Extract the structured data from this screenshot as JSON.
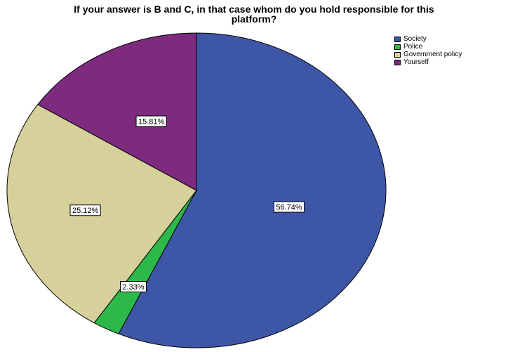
{
  "chart_data": {
    "type": "pie",
    "title": "If your answer is B and C, in that case whom do you hold responsible for this platform?",
    "title_lines": [
      "If your answer is B and C, in that case whom do you hold responsible for this",
      "platform?"
    ],
    "categories": [
      "Society",
      "Police",
      "Government policy",
      "Yourself"
    ],
    "values": [
      56.74,
      2.33,
      25.12,
      15.81
    ],
    "data_labels": [
      "56.74%",
      "2.33%",
      "25.12%",
      "15.81%"
    ],
    "colors": [
      "#3d56a6",
      "#2db84a",
      "#d6d09a",
      "#7d2a7f"
    ],
    "legend_position": "top-right"
  }
}
